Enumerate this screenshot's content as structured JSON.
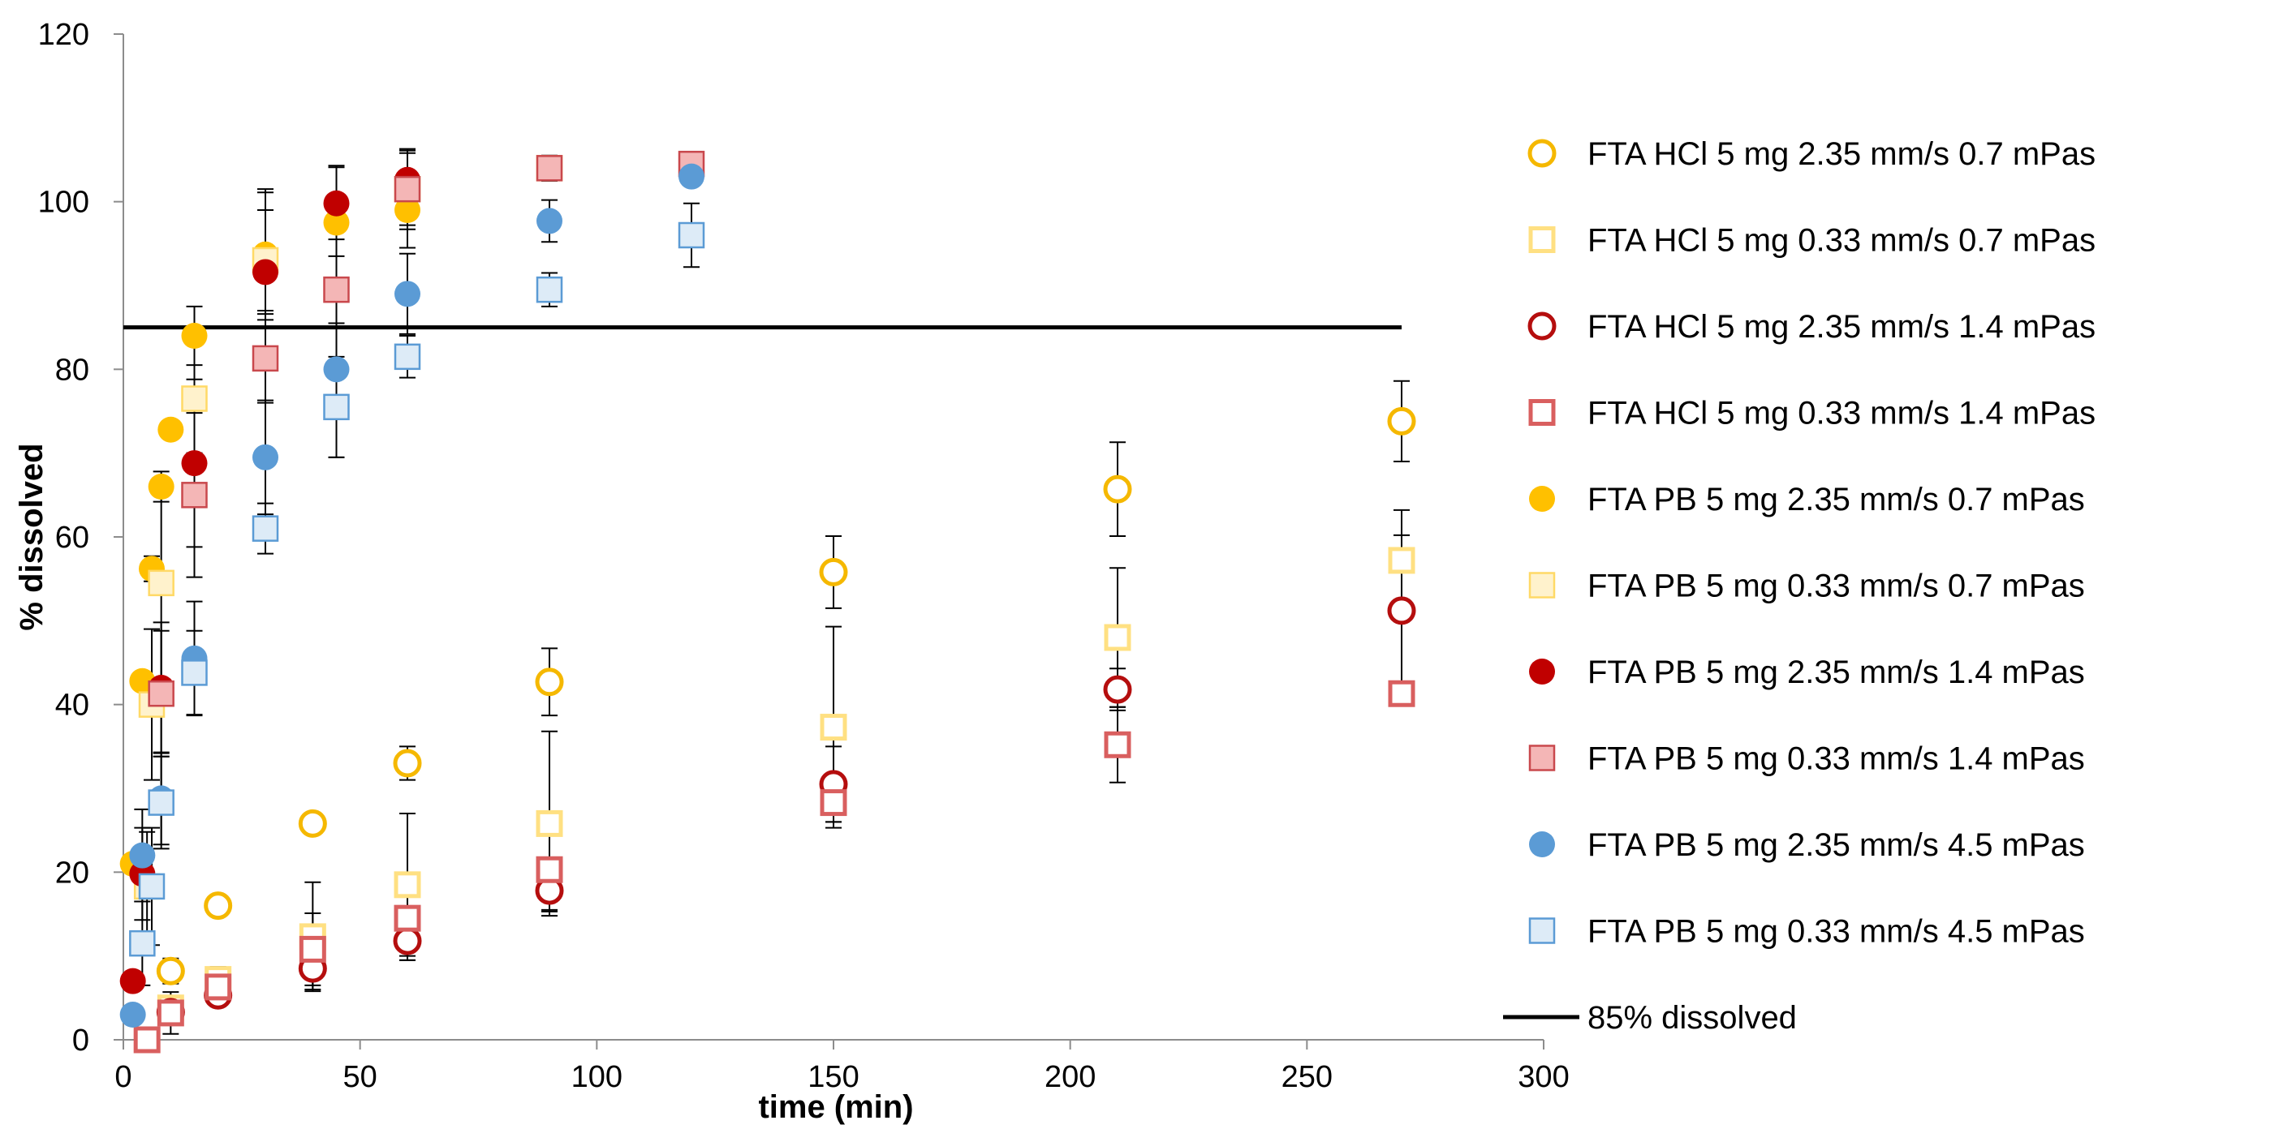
{
  "chart_data": {
    "type": "scatter",
    "xlabel": "time (min)",
    "ylabel": "% dissolved",
    "xlim": [
      0,
      300
    ],
    "ylim": [
      0,
      120
    ],
    "xticks": [
      0,
      50,
      100,
      150,
      200,
      250,
      300
    ],
    "yticks": [
      0,
      20,
      40,
      60,
      80,
      100,
      120
    ],
    "grid": false,
    "legend_position": "right",
    "error_bars": true,
    "reference_line": {
      "name": "85% dissolved",
      "y": 85,
      "x_range": [
        0,
        270
      ],
      "color": "#000000"
    },
    "series": [
      {
        "name": "FTA HCl 5 mg 2.35 mm/s 0.7 mPas",
        "marker": "circle",
        "filled": false,
        "stroke": "#F5B800",
        "fill": "#FFFFFF",
        "points": [
          {
            "x": 10,
            "y": 8.2,
            "err": 1.5
          },
          {
            "x": 20,
            "y": 16,
            "err": 0
          },
          {
            "x": 40,
            "y": 25.8,
            "err": 0
          },
          {
            "x": 60,
            "y": 33,
            "err": 2
          },
          {
            "x": 90,
            "y": 42.7,
            "err": 4
          },
          {
            "x": 150,
            "y": 55.8,
            "err": 4.3
          },
          {
            "x": 210,
            "y": 65.7,
            "err": 5.6
          },
          {
            "x": 270,
            "y": 73.8,
            "err": 4.8
          }
        ]
      },
      {
        "name": "FTA HCl 5 mg 0.33 mm/s 0.7 mPas",
        "marker": "square",
        "filled": false,
        "stroke": "#FFE082",
        "fill": "#FFFFFF",
        "points": [
          {
            "x": 10,
            "y": 3.8,
            "err": 1
          },
          {
            "x": 20,
            "y": 7.2,
            "err": 1.5
          },
          {
            "x": 40,
            "y": 12.3,
            "err": 6.5
          },
          {
            "x": 60,
            "y": 18.5,
            "err": 8.5
          },
          {
            "x": 90,
            "y": 25.8,
            "err": 11
          },
          {
            "x": 150,
            "y": 37.3,
            "err": 12
          },
          {
            "x": 210,
            "y": 48,
            "err": 8.3
          },
          {
            "x": 270,
            "y": 57.2,
            "err": 6
          }
        ]
      },
      {
        "name": "FTA HCl 5 mg 2.35 mm/s 1.4 mPas",
        "marker": "circle",
        "filled": false,
        "stroke": "#B50E0E",
        "fill": "#FFFFFF",
        "points": [
          {
            "x": 10,
            "y": 3.3,
            "err": 1
          },
          {
            "x": 20,
            "y": 5.3,
            "err": 1.3
          },
          {
            "x": 40,
            "y": 8.5,
            "err": 2.5
          },
          {
            "x": 60,
            "y": 11.8,
            "err": 2.3
          },
          {
            "x": 90,
            "y": 17.8,
            "err": 2.5
          },
          {
            "x": 150,
            "y": 30.5,
            "err": 4.5
          },
          {
            "x": 210,
            "y": 41.8,
            "err": 2.5
          },
          {
            "x": 270,
            "y": 51.2,
            "err": 9
          }
        ]
      },
      {
        "name": "FTA HCl 5 mg 0.33 mm/s 1.4 mPas",
        "marker": "square",
        "filled": false,
        "stroke": "#D95F5F",
        "fill": "#FFFFFF",
        "points": [
          {
            "x": 5,
            "y": 0,
            "err": 0
          },
          {
            "x": 10,
            "y": 3.2,
            "err": 2.5
          },
          {
            "x": 20,
            "y": 6.3,
            "err": 2.2
          },
          {
            "x": 40,
            "y": 10.8,
            "err": 4.3
          },
          {
            "x": 60,
            "y": 14.5,
            "err": 5
          },
          {
            "x": 90,
            "y": 20.3,
            "err": 4.8
          },
          {
            "x": 150,
            "y": 28.3,
            "err": 2.3
          },
          {
            "x": 210,
            "y": 35.2,
            "err": 4.5
          },
          {
            "x": 270,
            "y": 41.3,
            "err": 0
          }
        ]
      },
      {
        "name": "FTA PB 5 mg 2.35 mm/s 0.7 mPas",
        "marker": "circle",
        "filled": true,
        "stroke": "#FFC000",
        "fill": "#FFC000",
        "points": [
          {
            "x": 2,
            "y": 21,
            "err": 0
          },
          {
            "x": 4,
            "y": 42.8,
            "err": 0
          },
          {
            "x": 6,
            "y": 56.2,
            "err": 1.5
          },
          {
            "x": 8,
            "y": 66,
            "err": 1.8
          },
          {
            "x": 10,
            "y": 72.8,
            "err": 1
          },
          {
            "x": 15,
            "y": 84,
            "err": 3.5
          },
          {
            "x": 30,
            "y": 93.7,
            "err": 7.8
          },
          {
            "x": 45,
            "y": 97.5,
            "err": 6.8
          },
          {
            "x": 60,
            "y": 99,
            "err": 4.5
          }
        ]
      },
      {
        "name": "FTA PB 5 mg 0.33 mm/s 0.7 mPas",
        "marker": "square",
        "filled": true,
        "stroke": "#FFD966",
        "fill": "#FFF2CC",
        "points": [
          {
            "x": 5,
            "y": 18.3,
            "err": 6.5
          },
          {
            "x": 6,
            "y": 40,
            "err": 9
          },
          {
            "x": 8,
            "y": 54.5,
            "err": 11.8
          },
          {
            "x": 15,
            "y": 76.5,
            "err": 6.5
          },
          {
            "x": 30,
            "y": 93,
            "err": 6
          },
          {
            "x": 60,
            "y": 101.5,
            "err": 4.3
          },
          {
            "x": 90,
            "y": 104,
            "err": 0
          }
        ]
      },
      {
        "name": "FTA PB 5 mg 2.35 mm/s 1.4 mPas",
        "marker": "circle",
        "filled": true,
        "stroke": "#C00000",
        "fill": "#C00000",
        "points": [
          {
            "x": 2,
            "y": 7,
            "err": 0
          },
          {
            "x": 4,
            "y": 19.8,
            "err": 5.5
          },
          {
            "x": 8,
            "y": 42,
            "err": 7.8
          },
          {
            "x": 15,
            "y": 68.8,
            "err": 10
          },
          {
            "x": 30,
            "y": 91.6,
            "err": 9.5
          },
          {
            "x": 45,
            "y": 99.8,
            "err": 4.3
          },
          {
            "x": 60,
            "y": 102.6,
            "err": 3.5
          },
          {
            "x": 90,
            "y": 104,
            "err": 1.5
          },
          {
            "x": 120,
            "y": 104.3,
            "err": 1.5
          }
        ]
      },
      {
        "name": "FTA PB 5 mg 0.33 mm/s 1.4 mPas",
        "marker": "square",
        "filled": true,
        "stroke": "#C9484D",
        "fill": "#F4B6B6",
        "points": [
          {
            "x": 8,
            "y": 41.3,
            "err": 7.5
          },
          {
            "x": 15,
            "y": 65,
            "err": 9.8
          },
          {
            "x": 30,
            "y": 81.3,
            "err": 5.3
          },
          {
            "x": 45,
            "y": 89.5,
            "err": 4
          },
          {
            "x": 60,
            "y": 101.5,
            "err": 4.8
          },
          {
            "x": 90,
            "y": 104,
            "err": 1.5
          },
          {
            "x": 120,
            "y": 104.5,
            "err": 1
          }
        ]
      },
      {
        "name": "FTA PB 5 mg 2.35 mm/s 4.5 mPas",
        "marker": "circle",
        "filled": true,
        "stroke": "#5B9BD5",
        "fill": "#5B9BD5",
        "points": [
          {
            "x": 2,
            "y": 3,
            "err": 0
          },
          {
            "x": 4,
            "y": 22,
            "err": 5.5
          },
          {
            "x": 8,
            "y": 28.8,
            "err": 5.5
          },
          {
            "x": 15,
            "y": 45.5,
            "err": 6.8
          },
          {
            "x": 30,
            "y": 69.5,
            "err": 6.8
          },
          {
            "x": 45,
            "y": 80,
            "err": 10.5
          },
          {
            "x": 60,
            "y": 89,
            "err": 4.8
          },
          {
            "x": 90,
            "y": 97.7,
            "err": 2.5
          },
          {
            "x": 120,
            "y": 103,
            "err": 0
          }
        ]
      },
      {
        "name": "FTA PB 5 mg 0.33 mm/s 4.5 mPas",
        "marker": "square",
        "filled": true,
        "stroke": "#5B9BD5",
        "fill": "#DDEBF7",
        "points": [
          {
            "x": 4,
            "y": 11.5,
            "err": 5
          },
          {
            "x": 6,
            "y": 18.3,
            "err": 7
          },
          {
            "x": 8,
            "y": 28.3,
            "err": 5.5
          },
          {
            "x": 15,
            "y": 43.8,
            "err": 5
          },
          {
            "x": 30,
            "y": 61,
            "err": 3
          },
          {
            "x": 45,
            "y": 75.5,
            "err": 6
          },
          {
            "x": 60,
            "y": 81.5,
            "err": 2.5
          },
          {
            "x": 90,
            "y": 89.5,
            "err": 2
          },
          {
            "x": 120,
            "y": 96,
            "err": 3.8
          }
        ]
      }
    ]
  }
}
